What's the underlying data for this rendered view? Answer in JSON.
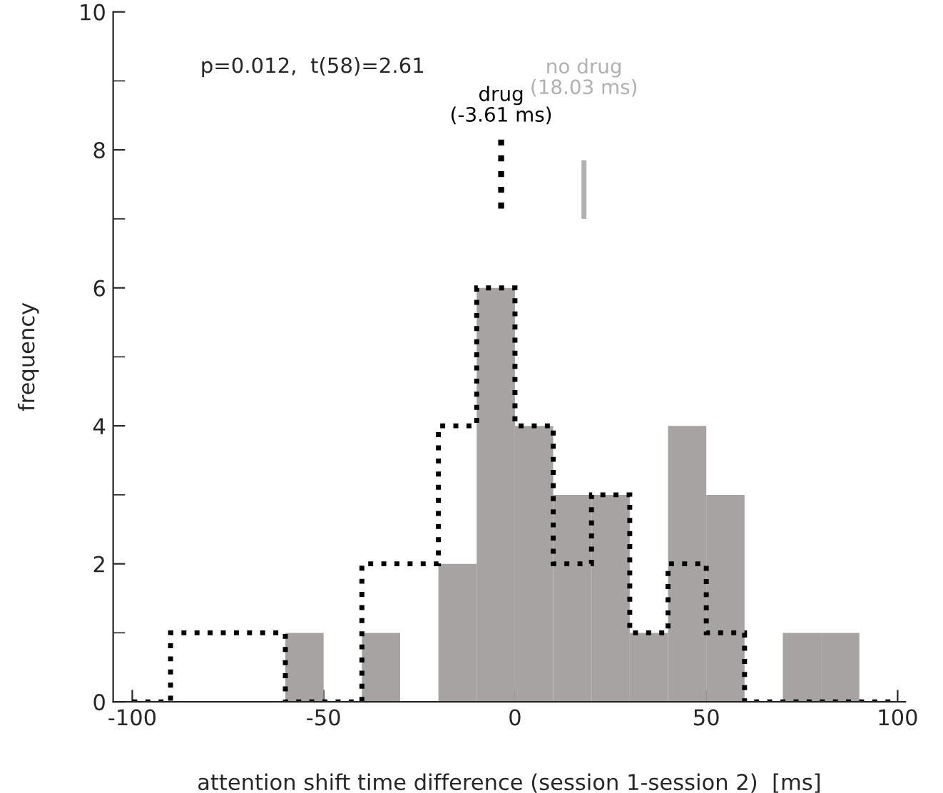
{
  "chart_data": {
    "type": "histogram",
    "xlabel": "attention shift time difference (session 1-session 2)  [ms]",
    "ylabel": "frequency",
    "annotations": [
      "p=0.012,  t(58)=2.61"
    ],
    "bins": [
      -100,
      -90,
      -80,
      -70,
      -60,
      -50,
      -40,
      -30,
      -20,
      -10,
      0,
      10,
      20,
      30,
      40,
      50,
      60,
      70,
      80,
      90,
      100
    ],
    "series": [
      {
        "color": "#a8a3a3",
        "values": [
          0,
          0,
          0,
          0,
          1,
          0,
          1,
          0,
          2,
          6,
          4,
          3,
          3,
          1,
          4,
          3,
          0,
          1,
          1,
          0
        ]
      },
      {
        "color": "#000000",
        "line_style": "dotted",
        "values": [
          0,
          1,
          1,
          1,
          0,
          0,
          2,
          2,
          4,
          6,
          4,
          2,
          3,
          1,
          2,
          1,
          0,
          0,
          0,
          0
        ]
      }
    ],
    "ref_lines": [
      {
        "axis": "x",
        "value": -3.61,
        "label": "drug\n(-3.61 ms)",
        "color": "#000000",
        "line_style": "dotted"
      },
      {
        "axis": "x",
        "value": 18.03,
        "label": "no drug\n(18.03 ms)",
        "color": "#b0b0b0",
        "line_style": "solid"
      }
    ],
    "xlim": [
      -105,
      102
    ],
    "xticks": [
      -100,
      -50,
      0,
      50,
      100
    ],
    "ylim": [
      0,
      10
    ],
    "yticks": [
      0,
      2,
      4,
      6,
      8,
      10
    ],
    "grid": false,
    "legend": false
  }
}
